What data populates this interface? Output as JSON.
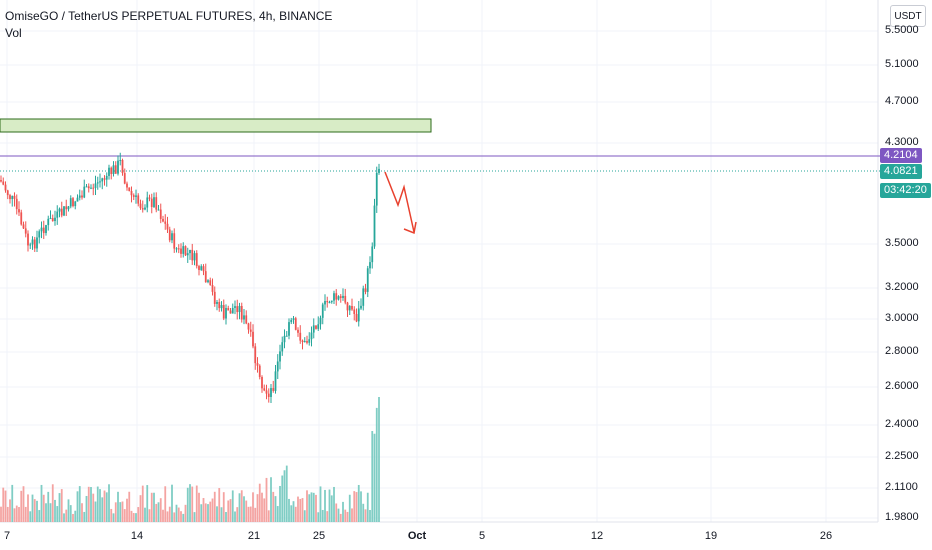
{
  "header": {
    "title": "OmiseGO / TetherUS PERPETUAL FUTURES, 4h, BINANCE",
    "volume_label": "Vol"
  },
  "price_axis": {
    "currency_label": "USDT",
    "ticks": [
      "5.5000",
      "5.1000",
      "4.7000",
      "4.3000",
      "3.5000",
      "3.2000",
      "3.0000",
      "2.8000",
      "2.6000",
      "2.4000",
      "2.2500",
      "2.1100",
      "1.9800"
    ],
    "current_price_label": "4.2104",
    "last_price_label": "4.0821",
    "countdown_label": "03:42:20"
  },
  "time_axis": {
    "ticks": [
      "7",
      "14",
      "21",
      "25",
      "Oct",
      "5",
      "12",
      "19",
      "26"
    ]
  },
  "colors": {
    "up": "#26a69a",
    "down": "#ef5350",
    "resistance_line": "#7e57c2",
    "zone_fill": "#d8ecc6",
    "zone_border": "#2e6b1b",
    "arrow": "#e8412e",
    "countdown_bg": "#26a69a"
  },
  "chart_data": {
    "type": "candlestick",
    "symbol": "OmiseGO / TetherUS PERPETUAL FUTURES",
    "interval": "4h",
    "exchange": "BINANCE",
    "ylim": [
      1.98,
      5.5
    ],
    "scale": "log",
    "x_ticks": [
      "7",
      "14",
      "21",
      "25",
      "Oct",
      "5",
      "12",
      "19",
      "26"
    ],
    "price_path_key_points": [
      {
        "x": "7",
        "price": 3.9
      },
      {
        "x": "14",
        "price": 4.05
      },
      {
        "x": "21",
        "price": 2.55
      },
      {
        "x": "25",
        "price": 3.1
      },
      {
        "x": "28",
        "price": 4.2
      }
    ],
    "annotations": {
      "resistance_line": 4.2104,
      "supply_zone": [
        4.38,
        4.5
      ],
      "last_price": 4.0821,
      "projection": "down-arrow"
    },
    "volume_spike": "28"
  }
}
